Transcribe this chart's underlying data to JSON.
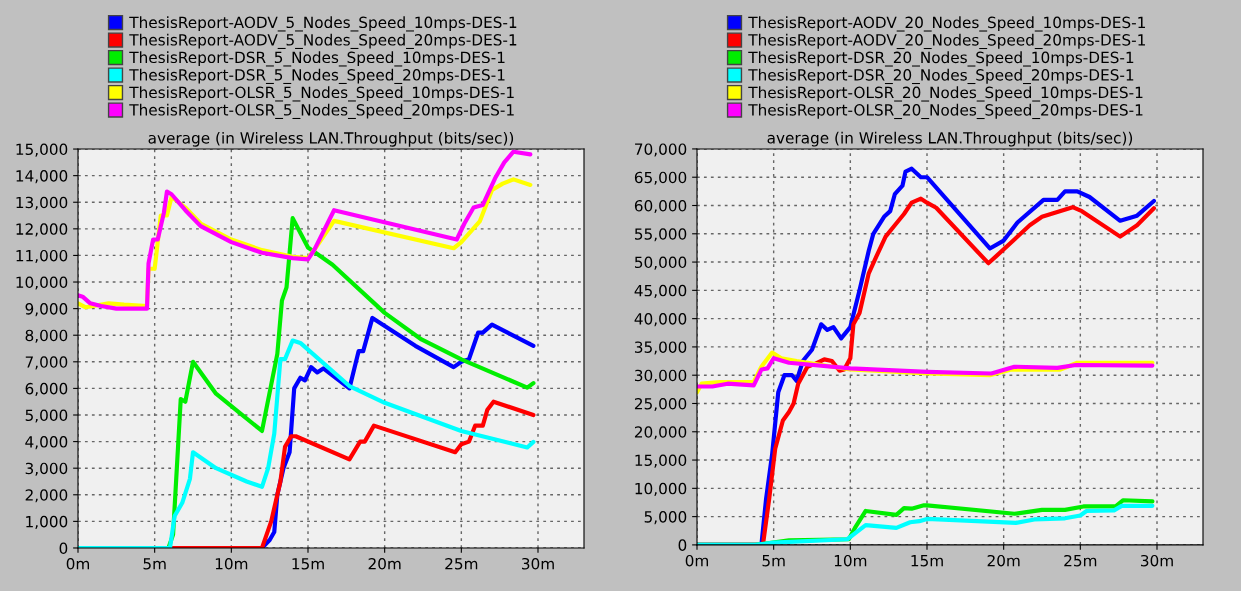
{
  "chart_data": [
    {
      "type": "line",
      "title": "average (in Wireless LAN.Throughput (bits/sec))",
      "grid": true,
      "legend": "top",
      "marker": "none",
      "line_style": "solid",
      "xlim": [
        0,
        33
      ],
      "ylim": [
        0,
        15000
      ],
      "xticks": [
        {
          "value": 0,
          "label": "0m"
        },
        {
          "value": 5,
          "label": "5m"
        },
        {
          "value": 10,
          "label": "10m"
        },
        {
          "value": 15,
          "label": "15m"
        },
        {
          "value": 20,
          "label": "20m"
        },
        {
          "value": 25,
          "label": "25m"
        },
        {
          "value": 30,
          "label": "30m"
        }
      ],
      "yticks": [
        0,
        {
          "value": 1000,
          "label": "1,000"
        },
        {
          "value": 2000,
          "label": "2,000"
        },
        {
          "value": 3000,
          "label": "3,000"
        },
        {
          "value": 4000,
          "label": "4,000"
        },
        {
          "value": 5000,
          "label": "5,000"
        },
        {
          "value": 6000,
          "label": "6,000"
        },
        {
          "value": 7000,
          "label": "7,000"
        },
        {
          "value": 8000,
          "label": "8,000"
        },
        {
          "value": 9000,
          "label": "9,000"
        },
        {
          "value": 10000,
          "label": "10,000"
        },
        {
          "value": 11000,
          "label": "11,000"
        },
        {
          "value": 12000,
          "label": "12,000"
        },
        {
          "value": 13000,
          "label": "13,000"
        },
        {
          "value": 14000,
          "label": "14,000"
        },
        {
          "value": 15000,
          "label": "15,000"
        }
      ],
      "series": [
        {
          "name": "ThesisReport-AODV_5_Nodes_Speed_10mps-DES-1",
          "color": "#0000ff",
          "x": [
            0,
            12,
            12.5,
            12.8,
            13.0,
            13.4,
            13.8,
            14.1,
            14.5,
            14.8,
            15.2,
            15.6,
            16,
            17.7,
            18.3,
            18.6,
            19.2,
            22,
            24.5,
            25,
            25.5,
            26.1,
            26.4,
            27,
            29.7
          ],
          "values": [
            0,
            0,
            300,
            600,
            2000,
            3000,
            3600,
            6000,
            6400,
            6300,
            6800,
            6600,
            6750,
            6000,
            7400,
            7400,
            8650,
            7600,
            6800,
            7000,
            7100,
            8100,
            8100,
            8400,
            7600
          ]
        },
        {
          "name": "ThesisReport-AODV_5_Nodes_Speed_20mps-DES-1",
          "color": "#ff0000",
          "x": [
            0,
            12,
            12.6,
            13.2,
            13.5,
            13.9,
            14.2,
            17.7,
            18.4,
            18.7,
            19.3,
            24.6,
            25,
            25.5,
            25.9,
            26.4,
            26.7,
            27.1,
            29.7
          ],
          "values": [
            0,
            0,
            1000,
            2500,
            3800,
            4200,
            4200,
            3330,
            4000,
            4000,
            4600,
            3600,
            3900,
            4000,
            4600,
            4600,
            5200,
            5500,
            5000
          ]
        },
        {
          "name": "ThesisReport-DSR_5_Nodes_Speed_10mps-DES-1",
          "color": "#00ee00",
          "x": [
            0,
            5.9,
            6.2,
            6.7,
            7,
            7.5,
            9,
            10.5,
            12,
            13.0,
            13.3,
            13.6,
            14,
            15,
            16.6,
            20,
            22.4,
            25,
            29.3,
            29.7
          ],
          "values": [
            0,
            0,
            500,
            5600,
            5500,
            7000,
            5800,
            5100,
            4400,
            7300,
            9300,
            9800,
            12400,
            11300,
            10650,
            8840,
            7840,
            7090,
            6030,
            6200
          ]
        },
        {
          "name": "ThesisReport-DSR_5_Nodes_Speed_20mps-DES-1",
          "color": "#00ffff",
          "x": [
            0,
            6,
            6.3,
            6.8,
            7.3,
            7.5,
            9,
            11,
            12,
            12.4,
            12.8,
            13.2,
            13.5,
            14,
            14.5,
            17.7,
            20,
            25,
            29.3,
            29.7
          ],
          "values": [
            0,
            0,
            1200,
            1700,
            2600,
            3600,
            3000,
            2500,
            2300,
            3000,
            4300,
            7100,
            7100,
            7800,
            7710,
            6090,
            5460,
            4400,
            3780,
            3990
          ]
        },
        {
          "name": "ThesisReport-OLSR_5_Nodes_Speed_10mps-DES-1",
          "color": "#ffff00",
          "x": [
            0,
            0.5,
            1,
            2,
            3,
            4.5,
            4.6,
            5,
            5.4,
            5.8,
            6.1,
            7,
            8,
            10,
            12,
            14,
            15,
            15.4,
            16.7,
            24.5,
            25,
            26.2,
            27,
            27.7,
            28.4,
            29.5
          ],
          "values": [
            9200,
            9050,
            9100,
            9200,
            9150,
            9100,
            10500,
            10500,
            12500,
            12500,
            13200,
            12800,
            12200,
            11600,
            11200,
            10950,
            10900,
            11200,
            12300,
            11270,
            11500,
            12280,
            13460,
            13700,
            13860,
            13650
          ]
        },
        {
          "name": "ThesisReport-OLSR_5_Nodes_Speed_20mps-DES-1",
          "color": "#ff00ff",
          "x": [
            0,
            0.3,
            0.8,
            1.5,
            2.5,
            3,
            4.5,
            4.6,
            4.9,
            5.2,
            5.6,
            5.8,
            6.1,
            7,
            8,
            10,
            12,
            14,
            15,
            15.4,
            16.7,
            24.7,
            25.2,
            25.8,
            26.4,
            27.2,
            27.8,
            28.4,
            29.5
          ],
          "values": [
            9500,
            9450,
            9200,
            9100,
            9000,
            9000,
            9000,
            10700,
            11600,
            11600,
            12600,
            13400,
            13300,
            12700,
            12100,
            11500,
            11100,
            10900,
            10850,
            11200,
            12700,
            11600,
            12200,
            12800,
            12900,
            13900,
            14500,
            14900,
            14800
          ]
        }
      ]
    },
    {
      "type": "line",
      "title": "average (in Wireless LAN.Throughput (bits/sec))",
      "grid": true,
      "legend": "top",
      "marker": "none",
      "line_style": "solid",
      "xlim": [
        0,
        33
      ],
      "ylim": [
        0,
        70000
      ],
      "xticks": [
        {
          "value": 0,
          "label": "0m"
        },
        {
          "value": 5,
          "label": "5m"
        },
        {
          "value": 10,
          "label": "10m"
        },
        {
          "value": 15,
          "label": "15m"
        },
        {
          "value": 20,
          "label": "20m"
        },
        {
          "value": 25,
          "label": "25m"
        },
        {
          "value": 30,
          "label": "30m"
        }
      ],
      "yticks": [
        0,
        {
          "value": 5000,
          "label": "5,000"
        },
        {
          "value": 10000,
          "label": "10,000"
        },
        {
          "value": 15000,
          "label": "15,000"
        },
        {
          "value": 20000,
          "label": "20,000"
        },
        {
          "value": 25000,
          "label": "25,000"
        },
        {
          "value": 30000,
          "label": "30,000"
        },
        {
          "value": 35000,
          "label": "35,000"
        },
        {
          "value": 40000,
          "label": "40,000"
        },
        {
          "value": 45000,
          "label": "45,000"
        },
        {
          "value": 50000,
          "label": "50,000"
        },
        {
          "value": 55000,
          "label": "55,000"
        },
        {
          "value": 60000,
          "label": "60,000"
        },
        {
          "value": 65000,
          "label": "65,000"
        },
        {
          "value": 70000,
          "label": "70,000"
        }
      ],
      "series": [
        {
          "name": "ThesisReport-AODV_20_Nodes_Speed_10mps-DES-1",
          "color": "#0000ff",
          "x": [
            0,
            4.2,
            4.5,
            4.9,
            5.3,
            5.7,
            6.2,
            6.5,
            6.9,
            7.5,
            8.1,
            8.5,
            8.9,
            9.4,
            10,
            10.6,
            11.2,
            11.5,
            12.2,
            12.6,
            12.9,
            13.4,
            13.6,
            14,
            14.6,
            15,
            19.1,
            20,
            20.9,
            22.6,
            23.5,
            24,
            24.8,
            25.6,
            27.6,
            28.7,
            29.8
          ],
          "values": [
            0,
            0,
            8000,
            16000,
            27000,
            30000,
            30000,
            29000,
            32500,
            34500,
            39000,
            38000,
            38500,
            36500,
            38500,
            45000,
            52000,
            55000,
            58000,
            59000,
            62000,
            63500,
            66000,
            66500,
            65000,
            65000,
            52400,
            53800,
            57000,
            61000,
            61000,
            62500,
            62500,
            61500,
            57300,
            58200,
            60800
          ]
        },
        {
          "name": "ThesisReport-AODV_20_Nodes_Speed_20mps-DES-1",
          "color": "#ff0000",
          "x": [
            0,
            4.3,
            4.7,
            5.1,
            5.6,
            6.0,
            6.3,
            6.6,
            7.2,
            7.7,
            8.3,
            8.8,
            9.3,
            9.6,
            10.0,
            10.2,
            10.6,
            11.2,
            11.7,
            12.3,
            12.9,
            13.5,
            14.0,
            14.6,
            15,
            15.6,
            19.0,
            19.5,
            20.7,
            21.7,
            22.5,
            24.5,
            25.1,
            27.6,
            28.7,
            29.8
          ],
          "values": [
            0,
            0,
            8000,
            17000,
            22000,
            23500,
            25000,
            28500,
            31500,
            32000,
            32800,
            32500,
            30800,
            31000,
            33000,
            39000,
            41000,
            48000,
            51000,
            54500,
            56500,
            58500,
            60500,
            61200,
            60500,
            59600,
            49800,
            51000,
            54000,
            56500,
            58000,
            59700,
            59000,
            54500,
            56500,
            59500
          ]
        },
        {
          "name": "ThesisReport-DSR_20_Nodes_Speed_10mps-DES-1",
          "color": "#00ee00",
          "x": [
            0,
            3.8,
            6,
            8,
            9.9,
            10.3,
            11,
            13,
            13.5,
            14,
            14.8,
            15,
            20.7,
            22.5,
            24,
            25.2,
            27.3,
            27.8,
            29.7
          ],
          "values": [
            0,
            0,
            800,
            900,
            1000,
            3000,
            6000,
            5300,
            6500,
            6400,
            7000,
            7000,
            5500,
            6200,
            6200,
            6800,
            6800,
            7900,
            7700
          ]
        },
        {
          "name": "ThesisReport-DSR_20_Nodes_Speed_20mps-DES-1",
          "color": "#00ffff",
          "x": [
            0,
            3.8,
            5,
            9.8,
            11,
            13,
            13.9,
            14.5,
            15,
            20.8,
            22,
            24,
            25,
            25.4,
            27.2,
            27.7,
            29.7
          ],
          "values": [
            0,
            0,
            400,
            1000,
            3500,
            3000,
            4000,
            4200,
            4600,
            3900,
            4500,
            4700,
            5200,
            6000,
            6100,
            6900,
            6900
          ]
        },
        {
          "name": "ThesisReport-OLSR_20_Nodes_Speed_10mps-DES-1",
          "color": "#ffff00",
          "x": [
            0,
            0.3,
            1.5,
            3.7,
            4.2,
            4.9,
            5.5,
            6.5,
            10,
            15,
            19.1,
            20.5,
            23.7,
            24.8,
            29.7
          ],
          "values": [
            27000,
            28500,
            28800,
            28800,
            31500,
            34000,
            33000,
            32500,
            31000,
            30300,
            30000,
            31000,
            31000,
            32200,
            32200
          ]
        },
        {
          "name": "ThesisReport-OLSR_20_Nodes_Speed_20mps-DES-1",
          "color": "#ff00ff",
          "x": [
            0,
            1,
            2,
            3.7,
            4.2,
            4.6,
            5,
            6,
            10,
            15,
            19.2,
            20.7,
            23.5,
            24.7,
            29.7
          ],
          "values": [
            28000,
            28000,
            28500,
            28200,
            31000,
            31200,
            33000,
            32200,
            31200,
            30600,
            30300,
            31500,
            31300,
            31800,
            31700
          ]
        }
      ]
    }
  ]
}
